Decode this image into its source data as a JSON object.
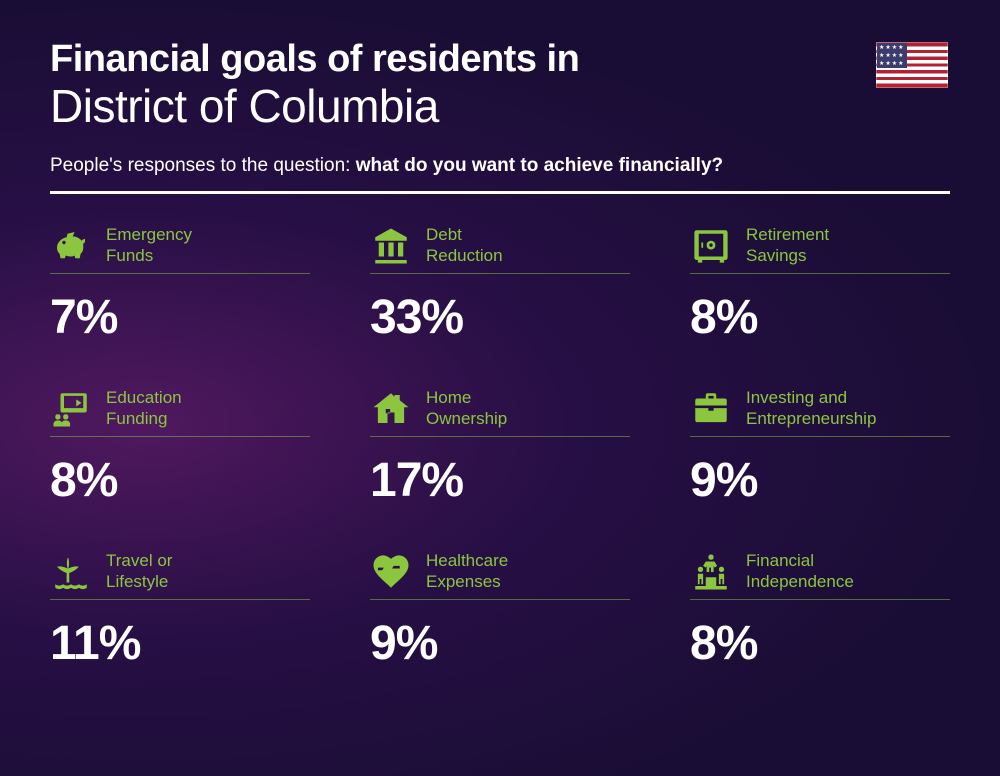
{
  "header": {
    "title_bold": "Financial goals of residents in",
    "title_light": "District of Columbia",
    "subtitle_prefix": "People's responses to the question: ",
    "subtitle_bold": "what do you want to achieve financially?"
  },
  "colors": {
    "accent": "#8cc63f",
    "text": "#ffffff",
    "background_primary": "#1a0d35",
    "background_glow": "#aa28a0"
  },
  "items": [
    {
      "icon": "piggy-bank-icon",
      "label": "Emergency\nFunds",
      "value": "7%"
    },
    {
      "icon": "bank-icon",
      "label": "Debt\nReduction",
      "value": "33%"
    },
    {
      "icon": "safe-icon",
      "label": "Retirement\nSavings",
      "value": "8%"
    },
    {
      "icon": "education-icon",
      "label": "Education\nFunding",
      "value": "8%"
    },
    {
      "icon": "house-icon",
      "label": "Home\nOwnership",
      "value": "17%"
    },
    {
      "icon": "briefcase-icon",
      "label": "Investing and\nEntrepreneurship",
      "value": "9%"
    },
    {
      "icon": "travel-icon",
      "label": "Travel or\nLifestyle",
      "value": "11%"
    },
    {
      "icon": "healthcare-icon",
      "label": "Healthcare\nExpenses",
      "value": "9%"
    },
    {
      "icon": "independence-icon",
      "label": "Financial\nIndependence",
      "value": "8%"
    }
  ]
}
